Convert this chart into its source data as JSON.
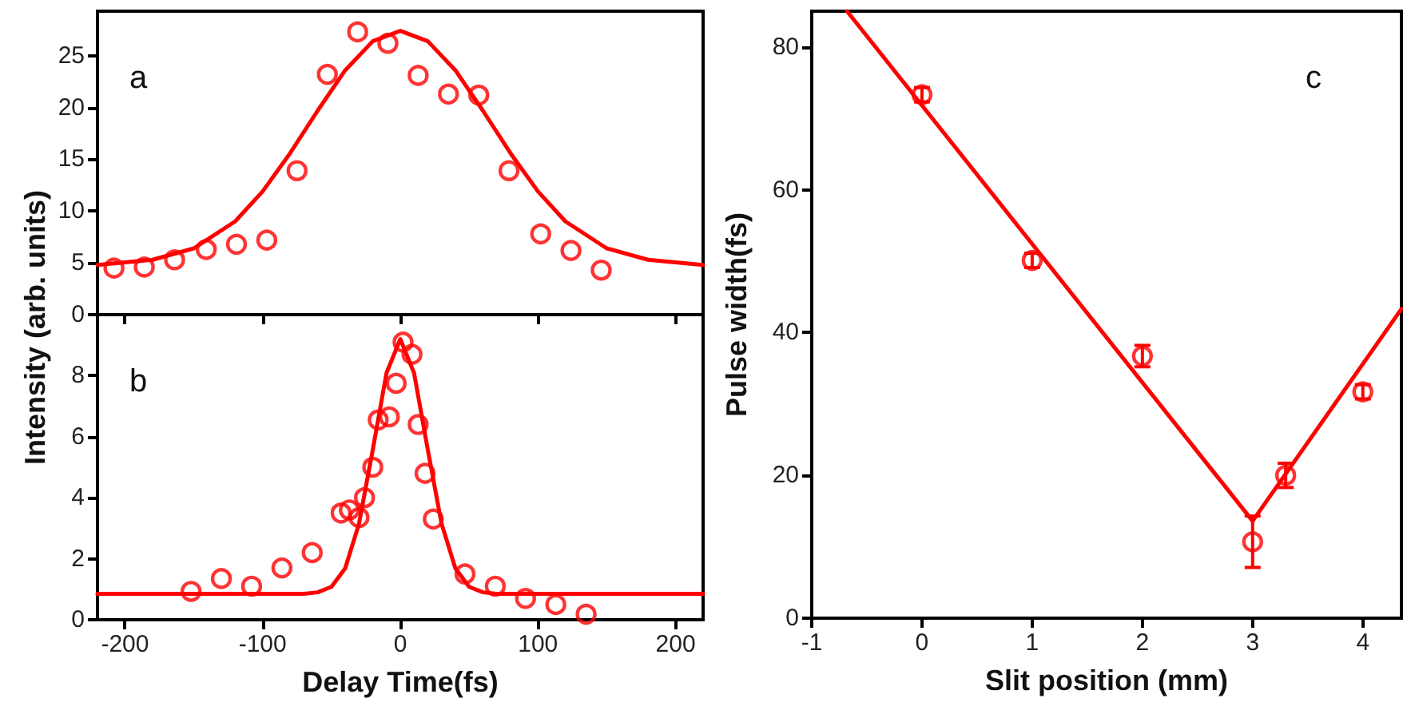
{
  "chart_data": [
    {
      "type": "scatter",
      "ylabel": "Intensity (arb. units)",
      "annotations": [
        "a"
      ],
      "xlim": [
        -220,
        220
      ],
      "xticks": [
        -200,
        -100,
        0,
        100,
        200
      ],
      "ylim": [
        0,
        29.3
      ],
      "yticks": [
        0,
        5,
        10,
        15,
        20,
        25
      ],
      "tick_labels": "y",
      "grid": false,
      "marker": "circle",
      "series": [
        {
          "type": "scatter",
          "color": "#ff0000",
          "x": [
            -208,
            -186,
            -164,
            -141,
            -119,
            -97,
            -75,
            -53,
            -31,
            -9,
            13,
            35,
            57,
            79,
            102,
            124,
            146
          ],
          "values": [
            4.5,
            4.6,
            5.3,
            6.3,
            6.8,
            7.2,
            13.9,
            23.2,
            27.3,
            26.2,
            23.1,
            21.3,
            21.2,
            13.9,
            7.8,
            6.2,
            4.3
          ]
        },
        {
          "type": "line",
          "color": "#ff0000",
          "marker": "none",
          "line_style": "solid",
          "x": [
            -220,
            -180,
            -150,
            -120,
            -100,
            -80,
            -60,
            -40,
            -20,
            0,
            20,
            40,
            60,
            80,
            100,
            120,
            150,
            180,
            220
          ],
          "values": [
            4.8,
            5.3,
            6.4,
            9.0,
            11.9,
            15.6,
            19.7,
            23.6,
            26.4,
            27.4,
            26.4,
            23.6,
            19.7,
            15.6,
            11.9,
            9.0,
            6.4,
            5.3,
            4.8
          ]
        }
      ]
    },
    {
      "type": "scatter",
      "xlabel": "Delay Time(fs)",
      "annotations": [
        "b"
      ],
      "xlim": [
        -220,
        220
      ],
      "xticks": [
        -200,
        -100,
        0,
        100,
        200
      ],
      "ylim": [
        0,
        10
      ],
      "yticks": [
        0,
        2,
        4,
        6,
        8
      ],
      "grid": false,
      "marker": "circle",
      "series": [
        {
          "type": "scatter",
          "color": "#ff0000",
          "x": [
            -152,
            -130,
            -108,
            -86,
            -64,
            -43,
            -37,
            -30,
            -26,
            -20,
            -16,
            -8,
            -3,
            2,
            8.5,
            13,
            18,
            24,
            47,
            69,
            91,
            113,
            135
          ],
          "values": [
            0.93,
            1.35,
            1.1,
            1.7,
            2.2,
            3.5,
            3.6,
            3.35,
            4.0,
            5.0,
            6.55,
            6.65,
            7.75,
            9.1,
            8.7,
            6.4,
            4.8,
            3.3,
            1.5,
            1.1,
            0.7,
            0.5,
            0.18
          ]
        },
        {
          "type": "line",
          "color": "#ff0000",
          "marker": "none",
          "line_style": "solid",
          "x": [
            -220,
            -70,
            -60,
            -50,
            -40,
            -30,
            -20,
            -10,
            0,
            10,
            20,
            30,
            40,
            50,
            60,
            70,
            220
          ],
          "values": [
            0.85,
            0.85,
            0.9,
            1.08,
            1.69,
            3.15,
            5.57,
            8.09,
            9.2,
            8.09,
            5.57,
            3.15,
            1.69,
            1.08,
            0.9,
            0.85,
            0.85
          ]
        }
      ]
    },
    {
      "type": "scatter",
      "xlabel": "Slit position (mm)",
      "ylabel": "Pulse width(fs)",
      "annotations": [
        "c"
      ],
      "xlim": [
        -1,
        4.35
      ],
      "xticks": [
        -1,
        0,
        1,
        2,
        3,
        4
      ],
      "ylim": [
        0,
        85
      ],
      "yticks": [
        0,
        20,
        40,
        60,
        80
      ],
      "grid": false,
      "marker": "circle",
      "series": [
        {
          "type": "scatter",
          "color": "#ff0000",
          "x": [
            0,
            1,
            2,
            3,
            3.3,
            4
          ],
          "values": [
            73.3,
            50.1,
            36.7,
            10.7,
            20.0,
            31.7
          ],
          "errors": [
            1,
            1,
            1.5,
            3.6,
            1.7,
            1
          ]
        },
        {
          "type": "line",
          "color": "#ff0000",
          "marker": "none",
          "line_style": "solid",
          "x": [
            -0.68,
            3,
            4.35
          ],
          "values": [
            85,
            13.6,
            43.3
          ]
        }
      ]
    }
  ]
}
